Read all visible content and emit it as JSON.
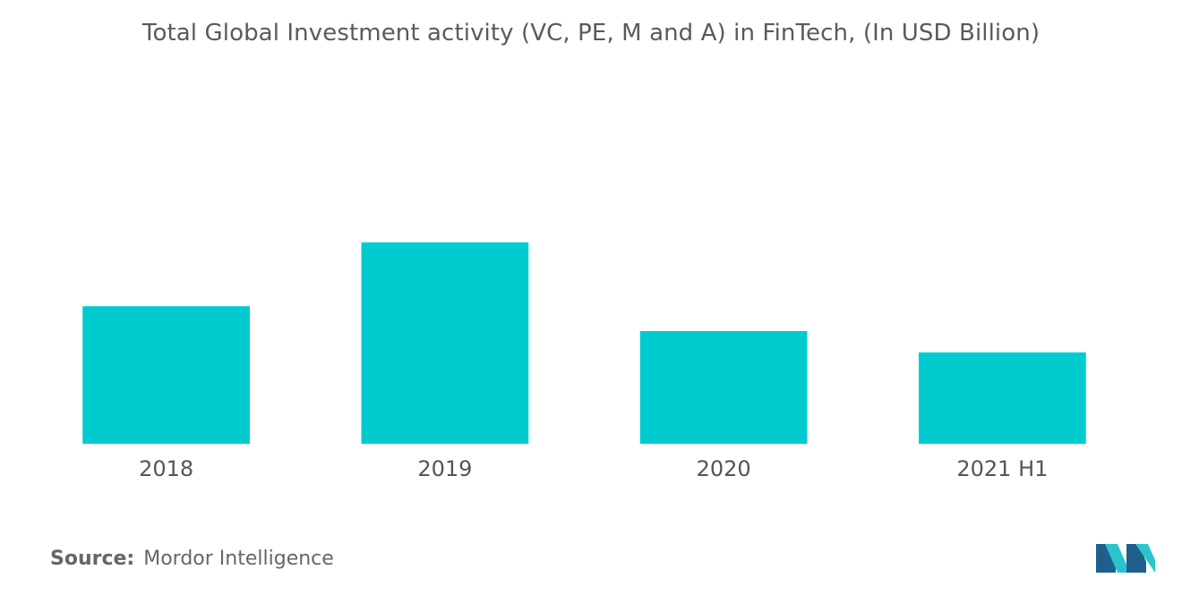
{
  "chart_data": {
    "type": "bar",
    "title": "Total Global Investment activity (VC, PE, M and A) in FinTech, (In USD Billion)",
    "categories": [
      "2018",
      "2019",
      "2020",
      "2021 H1"
    ],
    "values": [
      155,
      227,
      127,
      103
    ],
    "ylim": [
      0,
      500
    ],
    "grid": false,
    "legend": "none",
    "bar_color": "#00ccd0"
  },
  "source": {
    "label": "Source:",
    "text": "Mordor Intelligence"
  },
  "logo": {
    "icon": "mordor-intelligence-logo-icon",
    "colors": [
      "#1f5f8b",
      "#2cc4cc"
    ]
  }
}
